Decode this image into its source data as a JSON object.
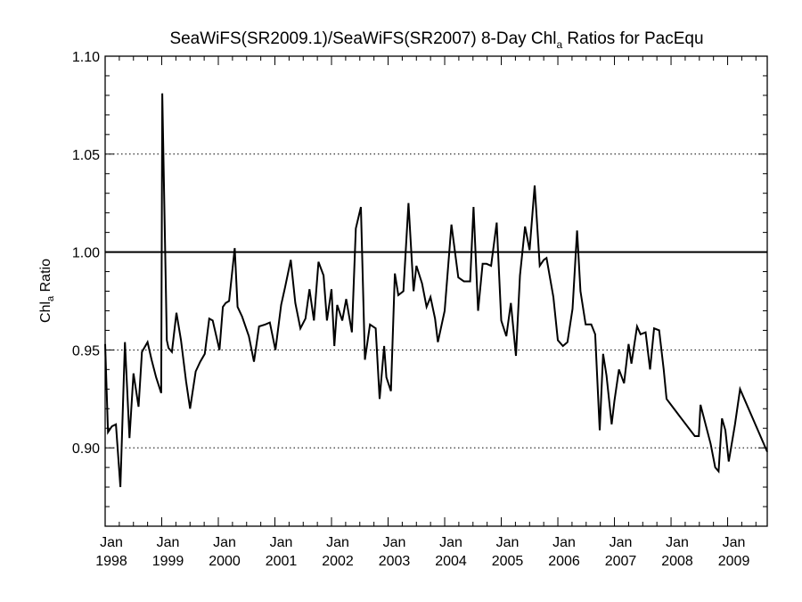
{
  "chart_data": {
    "type": "line",
    "title": "SeaWiFS(SR2009.1)/SeaWiFS(SR2007) 8-Day Chl",
    "title_subscript": "a",
    "title_suffix": " Ratios for PacEqu",
    "ylabel": "Chl",
    "ylabel_subscript": "a",
    "ylabel_suffix": " Ratio",
    "xlim": [
      1998.0,
      2009.7
    ],
    "ylim": [
      0.86,
      1.1
    ],
    "yticks": [
      {
        "v": 0.9,
        "label": "0.90"
      },
      {
        "v": 0.95,
        "label": "0.95"
      },
      {
        "v": 1.0,
        "label": "1.00"
      },
      {
        "v": 1.05,
        "label": "1.05"
      },
      {
        "v": 1.1,
        "label": "1.10"
      }
    ],
    "xticks": [
      {
        "v": 1998,
        "month": "Jan",
        "year": "1998"
      },
      {
        "v": 1999,
        "month": "Jan",
        "year": "1999"
      },
      {
        "v": 2000,
        "month": "Jan",
        "year": "2000"
      },
      {
        "v": 2001,
        "month": "Jan",
        "year": "2001"
      },
      {
        "v": 2002,
        "month": "Jan",
        "year": "2002"
      },
      {
        "v": 2003,
        "month": "Jan",
        "year": "2003"
      },
      {
        "v": 2004,
        "month": "Jan",
        "year": "2004"
      },
      {
        "v": 2005,
        "month": "Jan",
        "year": "2005"
      },
      {
        "v": 2006,
        "month": "Jan",
        "year": "2006"
      },
      {
        "v": 2007,
        "month": "Jan",
        "year": "2007"
      },
      {
        "v": 2008,
        "month": "Jan",
        "year": "2008"
      },
      {
        "v": 2009,
        "month": "Jan",
        "year": "2009"
      }
    ],
    "reference_line": 1.0,
    "grid": "dotted horizontal at y ticks",
    "series": [
      {
        "x": [
          1998.0,
          1998.05,
          1998.12,
          1998.19,
          1998.27,
          1998.35,
          1998.43,
          1998.5,
          1998.59,
          1998.65,
          1998.75,
          1998.82,
          1998.9,
          1998.99,
          1999.01,
          1999.09,
          1999.12,
          1999.18,
          1999.26,
          1999.34,
          1999.43,
          1999.5,
          1999.6,
          1999.68,
          1999.76,
          1999.84,
          1999.9,
          2000.02,
          2000.08,
          2000.13,
          2000.19,
          2000.29,
          2000.34,
          2000.42,
          2000.54,
          2000.63,
          2000.72,
          2000.83,
          2000.91,
          2001.01,
          2001.11,
          2001.18,
          2001.28,
          2001.36,
          2001.45,
          2001.54,
          2001.61,
          2001.69,
          2001.77,
          2001.86,
          2001.92,
          2002.0,
          2002.05,
          2002.1,
          2002.19,
          2002.26,
          2002.36,
          2002.43,
          2002.52,
          2002.59,
          2002.68,
          2002.78,
          2002.85,
          2002.93,
          2002.97,
          2003.05,
          2003.12,
          2003.18,
          2003.27,
          2003.36,
          2003.45,
          2003.5,
          2003.6,
          2003.68,
          2003.75,
          2003.83,
          2003.88,
          2004.0,
          2004.12,
          2004.24,
          2004.34,
          2004.45,
          2004.51,
          2004.59,
          2004.67,
          2004.74,
          2004.82,
          2004.92,
          2005.0,
          2005.09,
          2005.17,
          2005.26,
          2005.33,
          2005.42,
          2005.5,
          2005.59,
          2005.68,
          2005.75,
          2005.8,
          2005.92,
          2006.0,
          2006.09,
          2006.17,
          2006.26,
          2006.34,
          2006.4,
          2006.49,
          2006.59,
          2006.66,
          2006.74,
          2006.8,
          2006.86,
          2006.95,
          2007.0,
          2007.08,
          2007.17,
          2007.25,
          2007.3,
          2007.4,
          2007.46,
          2007.55,
          2007.63,
          2007.7,
          2007.79,
          2007.87,
          2007.92,
          2008.0,
          2008.42,
          2008.49,
          2008.52,
          2008.7,
          2008.78,
          2008.84,
          2008.9,
          2008.96,
          2009.02,
          2009.13,
          2009.22,
          2009.7
        ],
        "y": [
          0.953,
          0.908,
          0.911,
          0.912,
          0.88,
          0.954,
          0.905,
          0.938,
          0.921,
          0.949,
          0.954,
          0.945,
          0.936,
          0.928,
          1.081,
          0.955,
          0.951,
          0.949,
          0.969,
          0.955,
          0.934,
          0.92,
          0.939,
          0.944,
          0.948,
          0.966,
          0.965,
          0.95,
          0.972,
          0.974,
          0.975,
          1.002,
          0.972,
          0.967,
          0.957,
          0.944,
          0.962,
          0.963,
          0.964,
          0.95,
          0.973,
          0.982,
          0.996,
          0.974,
          0.961,
          0.966,
          0.981,
          0.965,
          0.995,
          0.988,
          0.965,
          0.981,
          0.952,
          0.973,
          0.965,
          0.976,
          0.959,
          1.012,
          1.023,
          0.945,
          0.963,
          0.961,
          0.925,
          0.952,
          0.936,
          0.929,
          0.989,
          0.978,
          0.98,
          1.025,
          0.98,
          0.993,
          0.984,
          0.972,
          0.977,
          0.966,
          0.954,
          0.97,
          1.014,
          0.987,
          0.985,
          0.985,
          1.023,
          0.97,
          0.994,
          0.994,
          0.993,
          1.015,
          0.965,
          0.957,
          0.974,
          0.947,
          0.988,
          1.013,
          1.001,
          1.034,
          0.993,
          0.996,
          0.997,
          0.977,
          0.955,
          0.952,
          0.954,
          0.971,
          1.011,
          0.98,
          0.963,
          0.963,
          0.958,
          0.909,
          0.948,
          0.937,
          0.912,
          0.924,
          0.94,
          0.933,
          0.953,
          0.943,
          0.962,
          0.958,
          0.959,
          0.94,
          0.961,
          0.96,
          0.94,
          0.925,
          0.922,
          0.906,
          0.906,
          0.922,
          0.902,
          0.89,
          0.888,
          0.915,
          0.909,
          0.893,
          0.912,
          0.93,
          0.898
        ]
      }
    ]
  }
}
